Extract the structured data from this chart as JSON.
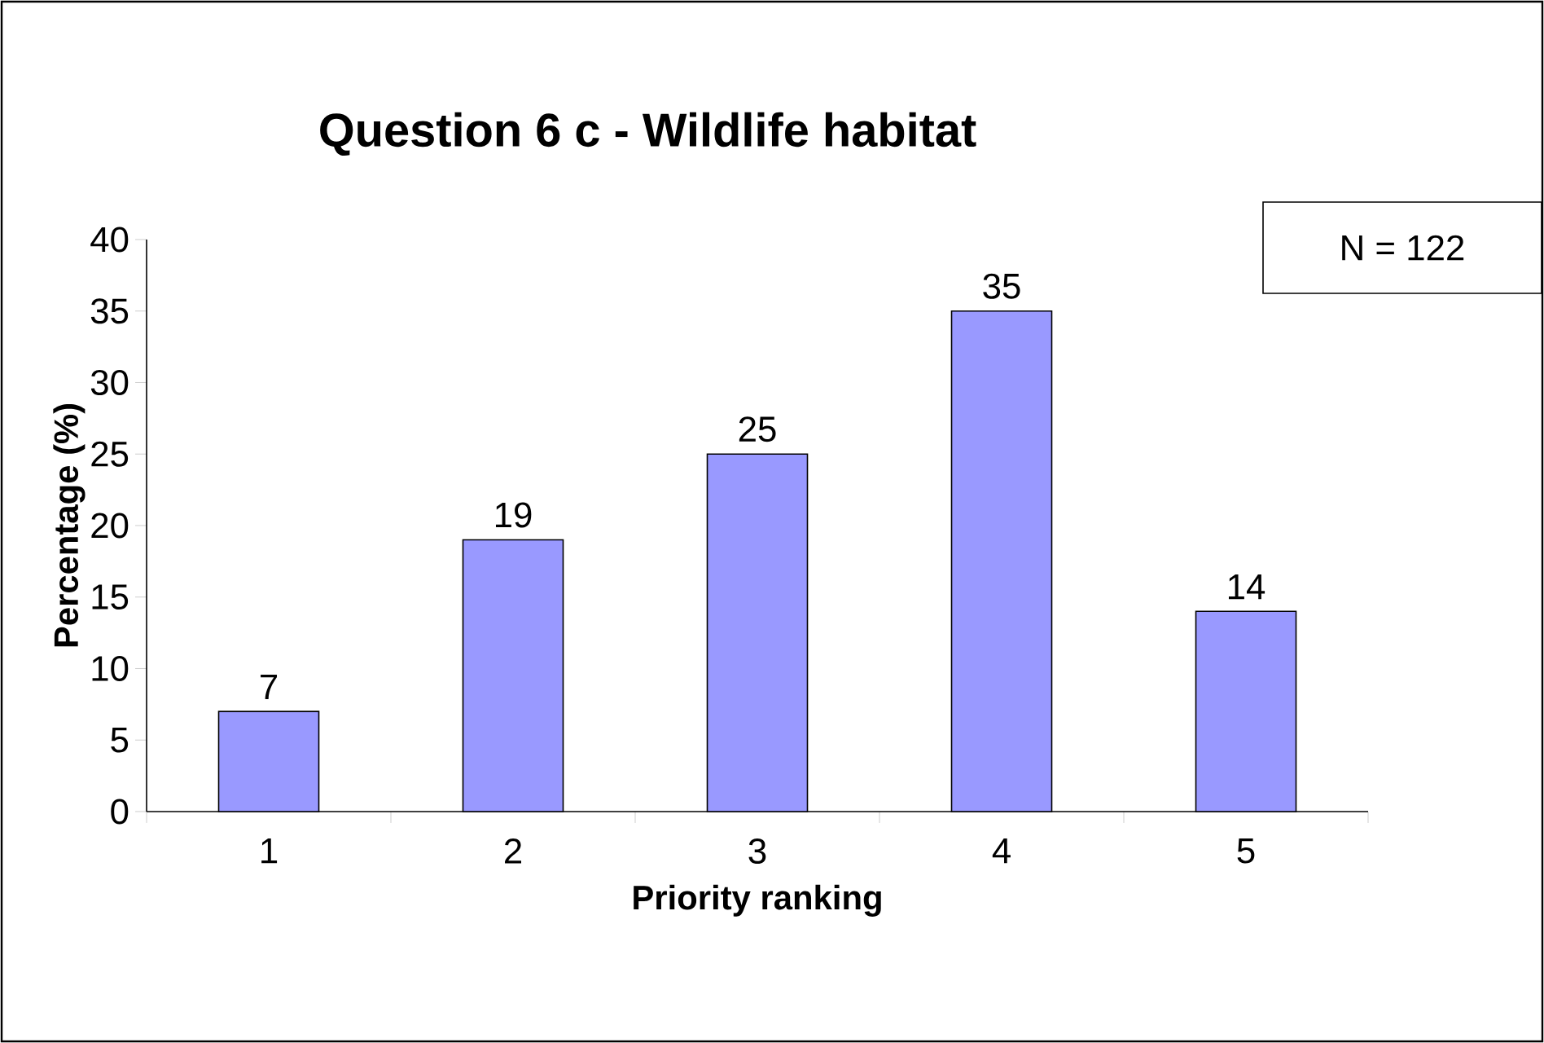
{
  "chart_data": {
    "type": "bar",
    "title": "Question 6 c - Wildlife habitat",
    "xlabel": "Priority ranking",
    "ylabel": "Percentage (%)",
    "categories": [
      "1",
      "2",
      "3",
      "4",
      "5"
    ],
    "values": [
      7,
      19,
      25,
      35,
      14
    ],
    "color": "#9999ff",
    "data_labels": true,
    "ylim": [
      0,
      40
    ],
    "yticks": [
      0,
      5,
      10,
      15,
      20,
      25,
      30,
      35,
      40
    ],
    "grid": false,
    "annotations": [
      "N = 122"
    ]
  }
}
